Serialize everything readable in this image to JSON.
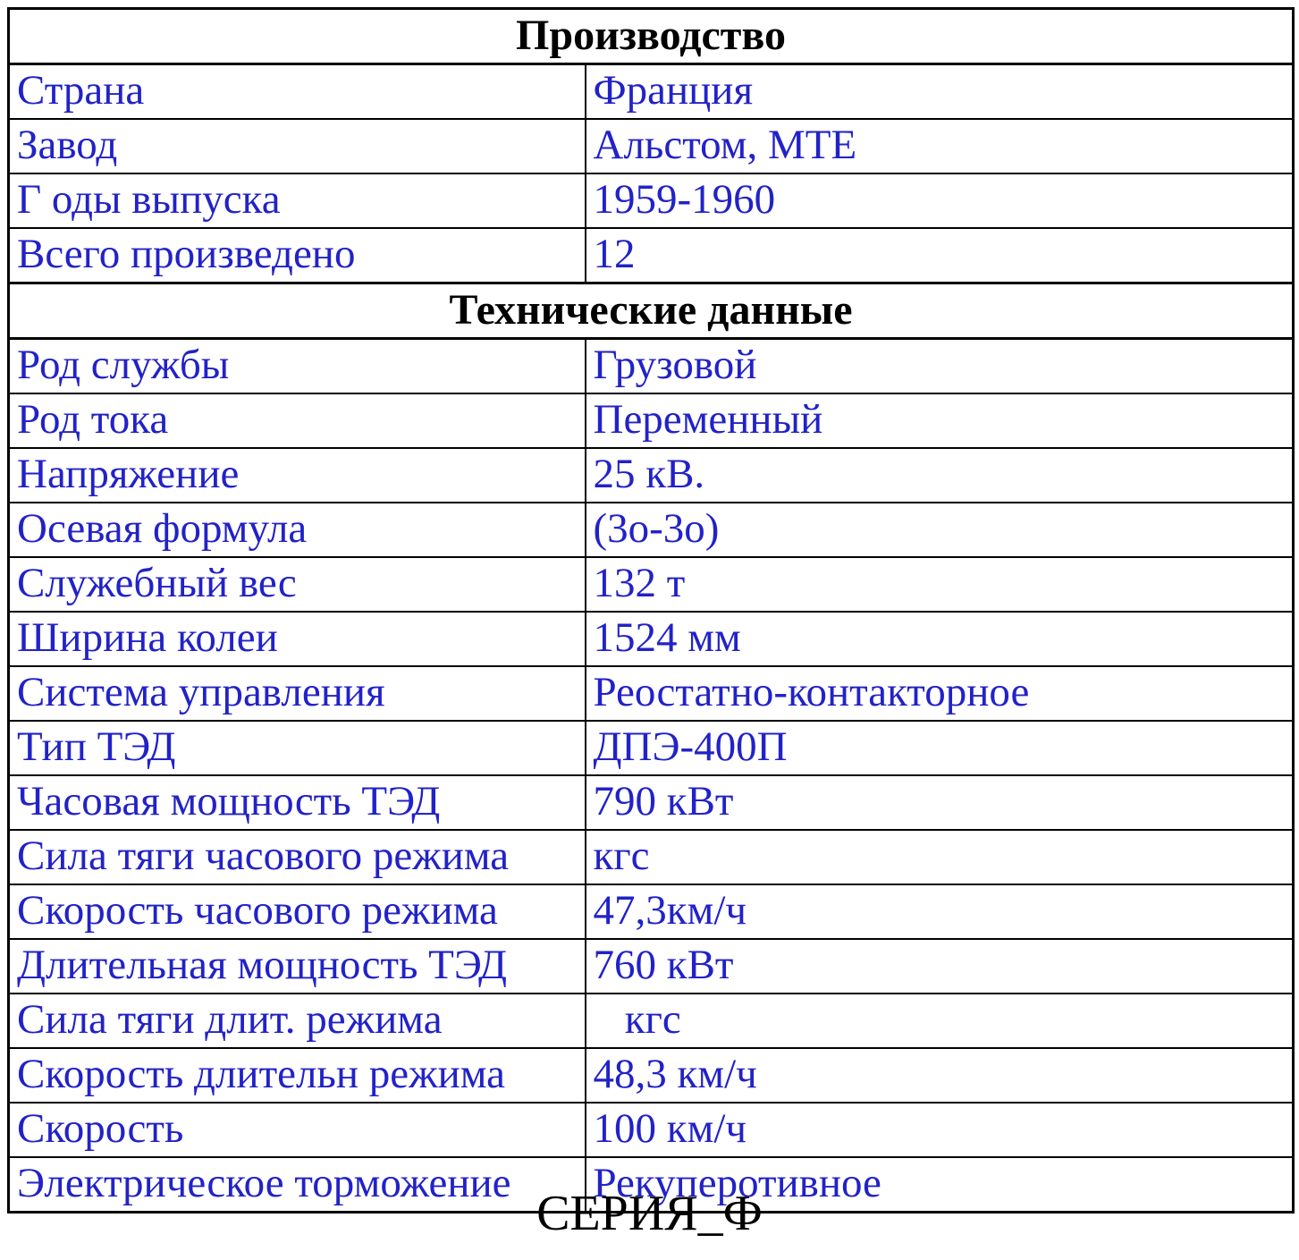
{
  "colors": {
    "data_text": "#2222C8",
    "header_text": "#000000",
    "border": "#000000",
    "background": "#FFFFFF"
  },
  "table": {
    "sections": [
      {
        "header": "Производство",
        "rows": [
          {
            "label": "Страна",
            "value": "Франция"
          },
          {
            "label": "Завод",
            "value": "Альстом, МТЕ"
          },
          {
            "label": "Г оды выпуска",
            "value": "1959-1960"
          },
          {
            "label": "Всего произведено",
            "value": "12"
          }
        ]
      },
      {
        "header": "Технические данные",
        "rows": [
          {
            "label": "Род службы",
            "value": "Грузовой"
          },
          {
            "label": "Род тока",
            "value": "Переменный"
          },
          {
            "label": "Напряжение",
            "value": "25 кВ."
          },
          {
            "label": "Осевая формула",
            "value": "(3о-3о)"
          },
          {
            "label": "Служебный вес",
            "value": "132 т"
          },
          {
            "label": "Ширина колеи",
            "value": "1524 мм"
          },
          {
            "label": "Система управления",
            "value": "Реостатно-контакторное"
          },
          {
            "label": "Тип ТЭД",
            "value": "ДПЭ-400П"
          },
          {
            "label": "Часовая мощность ТЭД",
            "value": "790 кВт"
          },
          {
            "label": "Сила тяги часового режима",
            "value": "кгс"
          },
          {
            "label": "Скорость часового режима",
            "value": "47,3км/ч"
          },
          {
            "label": "Длительная мощность ТЭД",
            "value": "760 кВт"
          },
          {
            "label": "Сила тяги длит. режима",
            "value": "   кгс"
          },
          {
            "label": "Скорость длительн режима",
            "value": "48,3 км/ч"
          },
          {
            "label": "Скорость",
            "value": "100 км/ч"
          },
          {
            "label": "Электрическое торможение",
            "value": "Рекуперотивное"
          }
        ]
      }
    ]
  },
  "caption": {
    "text": "СЕРИЯ_Ф"
  }
}
